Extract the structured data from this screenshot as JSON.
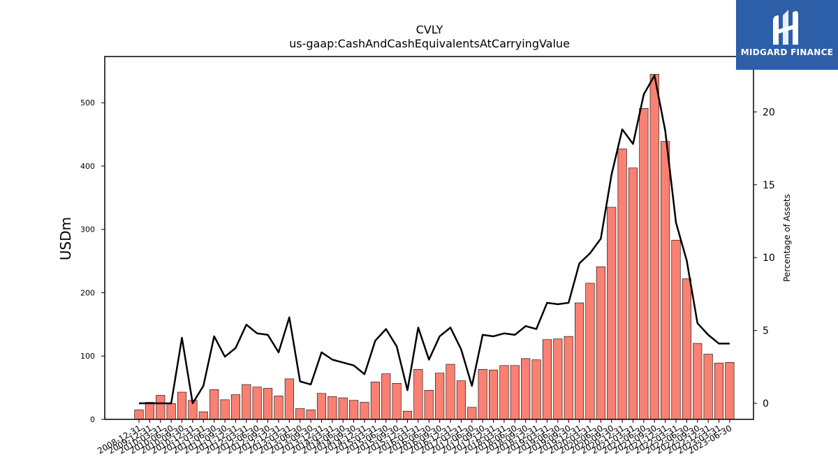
{
  "chart_data": {
    "type": "bar+line",
    "title": "CVLY",
    "subtitle": "us-gaap:CashAndCashEquivalentsAtCarryingValue",
    "ylabel": "USDm",
    "y2label": "Percentage of Assets",
    "ylim": [
      0,
      573
    ],
    "y2lim": [
      -1.1,
      23.8
    ],
    "yticks": [
      0,
      100,
      200,
      300,
      400,
      500
    ],
    "y2ticks": [
      0,
      5,
      10,
      15,
      20
    ],
    "bar_color": "#fa8072",
    "line_color": "#000000",
    "categories": [
      "2008-12-31",
      "2009-12-31",
      "2010-03-31",
      "2010-06-30",
      "2010-09-30",
      "2010-12-31",
      "2011-03-31",
      "2011-06-30",
      "2011-09-30",
      "2011-12-31",
      "2012-03-31",
      "2012-06-30",
      "2012-09-30",
      "2012-12-31",
      "2013-03-31",
      "2013-06-30",
      "2013-09-30",
      "2013-12-31",
      "2014-03-31",
      "2014-06-30",
      "2014-09-30",
      "2014-12-31",
      "2015-03-31",
      "2015-06-30",
      "2015-09-30",
      "2015-12-31",
      "2016-03-31",
      "2016-06-30",
      "2016-09-30",
      "2016-12-31",
      "2017-03-31",
      "2017-06-30",
      "2017-09-30",
      "2017-12-31",
      "2018-03-31",
      "2018-06-30",
      "2018-09-30",
      "2018-12-31",
      "2019-03-31",
      "2019-06-30",
      "2019-09-30",
      "2019-12-31",
      "2020-03-31",
      "2020-06-30",
      "2020-09-30",
      "2020-12-31",
      "2021-03-31",
      "2021-06-30",
      "2021-09-30",
      "2021-12-31",
      "2022-03-31",
      "2022-06-30",
      "2022-09-30",
      "2022-12-31",
      "2023-03-31",
      "2023-06-30"
    ],
    "series": [
      {
        "name": "USDm",
        "kind": "bar",
        "values": [
          15,
          27,
          38,
          25,
          43,
          30,
          12,
          47,
          31,
          39,
          55,
          51,
          49,
          37,
          64,
          17,
          15,
          41,
          36,
          34,
          30,
          27,
          59,
          72,
          57,
          13,
          79,
          46,
          73,
          87,
          61,
          19,
          79,
          78,
          85,
          85,
          96,
          94,
          126,
          127,
          131,
          184,
          215,
          241,
          335,
          427,
          397,
          491,
          545,
          439,
          283,
          222,
          120,
          103,
          89,
          90
        ]
      },
      {
        "name": "Percentage of Assets",
        "kind": "line",
        "values": [
          0,
          0,
          0,
          0,
          4.5,
          0,
          1.2,
          4.6,
          3.2,
          3.8,
          5.4,
          4.8,
          4.7,
          3.5,
          5.9,
          1.5,
          1.3,
          3.5,
          3.0,
          2.8,
          2.6,
          2.0,
          4.3,
          5.1,
          3.9,
          0.9,
          5.2,
          3.0,
          4.6,
          5.2,
          3.7,
          1.2,
          4.7,
          4.6,
          4.8,
          4.7,
          5.3,
          5.1,
          6.9,
          6.8,
          6.9,
          9.6,
          10.3,
          11.3,
          15.7,
          18.8,
          17.8,
          21.2,
          22.5,
          18.7,
          12.4,
          9.8,
          5.5,
          4.7,
          4.1,
          4.1
        ]
      }
    ]
  },
  "logo": {
    "text": "MIDGARD FINANCE",
    "bg": "#2d5ea8"
  }
}
